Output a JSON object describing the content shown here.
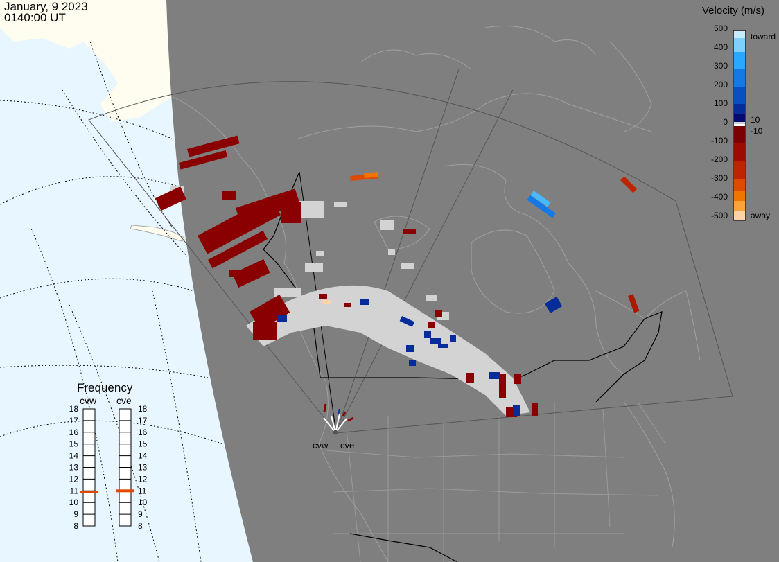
{
  "header": {
    "date": "January, 9 2023",
    "time": "0140:00 UT"
  },
  "legend": {
    "title": "Velocity (m/s)",
    "ticks": [
      "500",
      "400",
      "300",
      "200",
      "100",
      "0",
      "-100",
      "-200",
      "-300",
      "-400",
      "-500"
    ],
    "label_toward": "toward",
    "label_away": "away",
    "label_pos_limit": "10",
    "label_neg_limit": "-10",
    "colors": {
      "toward": [
        "#c8ecff",
        "#7fd0ff",
        "#2aa8ff",
        "#1478e6",
        "#0a4fc0",
        "#062c9a",
        "#030b6e"
      ],
      "ground_scatter": "#d3d3d3",
      "away": [
        "#7a0000",
        "#9c0a00",
        "#bd2500",
        "#dd4a00",
        "#f07400",
        "#ffa23a",
        "#ffd2a8"
      ]
    }
  },
  "frequency_panel": {
    "title": "Frequency",
    "radar_labels": [
      "cvw",
      "cve"
    ],
    "scale": [
      "18",
      "17",
      "16",
      "15",
      "14",
      "13",
      "12",
      "11",
      "10",
      "9",
      "8"
    ],
    "cvw_frequency_mhz": 10.9,
    "cve_frequency_mhz": 11.0
  },
  "radar_sites": [
    "cvw",
    "cve"
  ],
  "colors": {
    "night": "#7f7f7f",
    "ocean_day": "#e8f6ff",
    "land_day": "#fffdf0",
    "coastline": "#a8a8a8",
    "border": "#000000"
  }
}
